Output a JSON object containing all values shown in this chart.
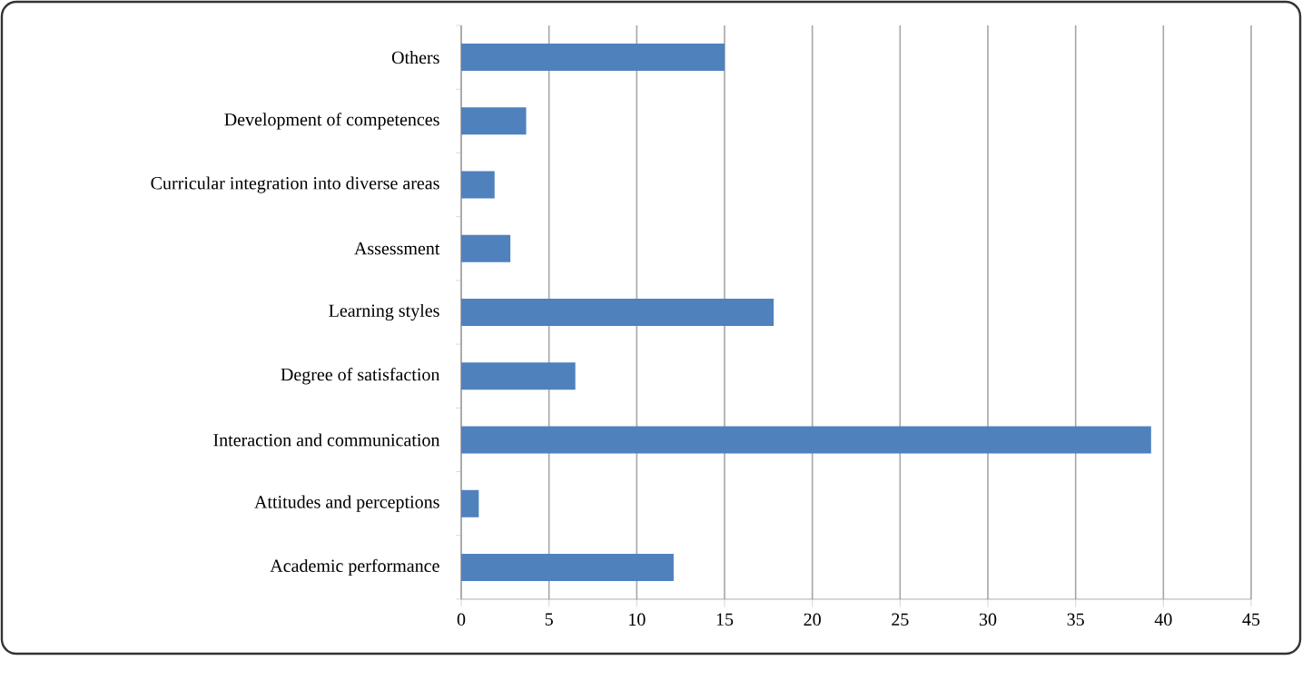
{
  "chart_data": {
    "type": "bar",
    "orientation": "horizontal",
    "categories": [
      "Others",
      "Development of competences",
      "Curricular integration into diverse areas",
      "Assessment",
      "Learning styles",
      "Degree of satisfaction",
      "Interaction and communication",
      "Attitudes and perceptions",
      "Academic performance"
    ],
    "values": [
      15,
      3.7,
      1.9,
      2.8,
      17.8,
      6.5,
      39.3,
      1.0,
      12.1
    ],
    "color": "#4f81bd",
    "xlim": [
      0,
      45
    ],
    "xticks": [
      0,
      5,
      10,
      15,
      20,
      25,
      30,
      35,
      40,
      45
    ],
    "grid": "x"
  }
}
